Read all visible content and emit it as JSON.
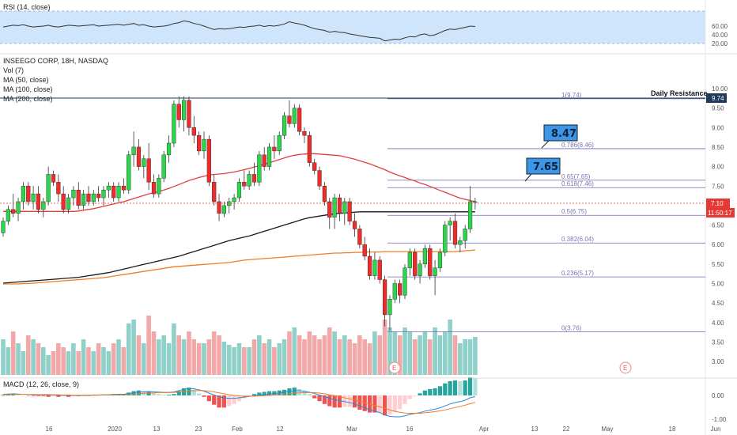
{
  "chart_data": {
    "type": "candlestick",
    "header": {
      "title": "INSEEGO CORP, 18H, NASDAQ",
      "indicators": [
        "Vol (7)",
        "MA (50, close)",
        "MA (100, close)",
        "MA (200, close)"
      ]
    },
    "rsi_label": "RSI (14, close)",
    "macd_label": "MACD (12, 26, close, 9)",
    "price_ticks": [
      "10.00",
      "9.50",
      "9.00",
      "8.50",
      "8.00",
      "7.50",
      "7.00",
      "6.50",
      "6.00",
      "5.50",
      "5.00",
      "4.50",
      "4.00",
      "3.50",
      "3.00"
    ],
    "rsi_ticks": [
      "60.00",
      "40.00",
      "20.00"
    ],
    "macd_ticks": [
      "0.00",
      "-1.00"
    ],
    "x_ticks": [
      "16",
      "2020",
      "13",
      "23",
      "Feb",
      "12",
      "Mar",
      "16",
      "Apr",
      "13",
      "22",
      "May",
      "18",
      "Jun"
    ],
    "price_badge": "7.10",
    "time_badge": "11:50:17",
    "resistance_badge": "9.74",
    "resistance_label": "Daily Resistance",
    "fib_levels": [
      {
        "text": "1(9.74)",
        "price": 9.74
      },
      {
        "text": "0.786(8.46)",
        "price": 8.46
      },
      {
        "text": "0.65(7.65)",
        "price": 7.65
      },
      {
        "text": "0.618(7.46)",
        "price": 7.46
      },
      {
        "text": "0.5(6.75)",
        "price": 6.75
      },
      {
        "text": "0.382(6.04)",
        "price": 6.04
      },
      {
        "text": "0.236(5.17)",
        "price": 5.17
      },
      {
        "text": "0(3.76)",
        "price": 3.76
      }
    ],
    "callouts": [
      "8.47",
      "7.65"
    ],
    "earnings_markers": [
      "E",
      "E"
    ],
    "candles": [
      [
        6.3,
        6.7,
        6.2,
        6.6
      ],
      [
        6.6,
        7.0,
        6.5,
        6.9
      ],
      [
        6.9,
        7.3,
        6.7,
        6.8
      ],
      [
        6.8,
        7.2,
        6.6,
        7.1
      ],
      [
        7.1,
        7.6,
        6.9,
        7.5
      ],
      [
        7.5,
        7.6,
        7.0,
        7.1
      ],
      [
        7.1,
        7.5,
        6.9,
        7.3
      ],
      [
        7.3,
        7.5,
        6.8,
        6.9
      ],
      [
        6.9,
        7.2,
        6.7,
        7.1
      ],
      [
        7.1,
        8.0,
        7.0,
        7.8
      ],
      [
        7.8,
        7.9,
        7.5,
        7.6
      ],
      [
        7.6,
        7.8,
        7.1,
        7.3
      ],
      [
        7.3,
        7.5,
        6.8,
        6.9
      ],
      [
        6.9,
        7.3,
        6.8,
        7.2
      ],
      [
        7.2,
        7.5,
        7.0,
        7.4
      ],
      [
        7.4,
        7.6,
        6.9,
        7.0
      ],
      [
        7.0,
        7.4,
        6.9,
        7.3
      ],
      [
        7.3,
        7.5,
        7.0,
        7.1
      ],
      [
        7.1,
        7.4,
        7.0,
        7.3
      ],
      [
        7.3,
        7.5,
        7.1,
        7.2
      ],
      [
        7.2,
        7.5,
        7.0,
        7.4
      ],
      [
        7.4,
        7.6,
        7.2,
        7.5
      ],
      [
        7.5,
        7.6,
        7.1,
        7.2
      ],
      [
        7.2,
        7.6,
        7.1,
        7.5
      ],
      [
        7.5,
        7.7,
        7.3,
        7.4
      ],
      [
        7.4,
        8.4,
        7.3,
        8.3
      ],
      [
        8.3,
        8.9,
        8.0,
        8.5
      ],
      [
        8.5,
        8.7,
        7.9,
        8.0
      ],
      [
        8.0,
        8.3,
        7.7,
        8.2
      ],
      [
        8.2,
        8.6,
        7.4,
        7.6
      ],
      [
        7.6,
        7.8,
        7.2,
        7.3
      ],
      [
        7.3,
        7.8,
        7.2,
        7.7
      ],
      [
        7.7,
        8.4,
        7.6,
        8.3
      ],
      [
        8.3,
        8.8,
        8.1,
        8.6
      ],
      [
        8.6,
        9.7,
        8.5,
        9.6
      ],
      [
        9.6,
        9.8,
        9.0,
        9.2
      ],
      [
        9.2,
        9.8,
        8.9,
        9.7
      ],
      [
        9.7,
        9.8,
        8.8,
        9.0
      ],
      [
        9.0,
        9.3,
        8.6,
        8.8
      ],
      [
        8.8,
        8.9,
        8.3,
        8.4
      ],
      [
        8.4,
        8.9,
        8.2,
        8.7
      ],
      [
        8.7,
        8.8,
        7.5,
        7.6
      ],
      [
        7.6,
        7.8,
        7.0,
        7.1
      ],
      [
        7.1,
        7.3,
        6.6,
        6.8
      ],
      [
        6.8,
        7.1,
        6.7,
        7.0
      ],
      [
        7.0,
        7.2,
        6.8,
        7.1
      ],
      [
        7.1,
        7.3,
        6.9,
        7.2
      ],
      [
        7.2,
        7.7,
        7.1,
        7.6
      ],
      [
        7.6,
        7.9,
        7.4,
        7.5
      ],
      [
        7.5,
        7.9,
        7.4,
        7.8
      ],
      [
        7.8,
        8.1,
        7.5,
        7.6
      ],
      [
        7.6,
        8.4,
        7.5,
        8.3
      ],
      [
        8.3,
        8.5,
        7.9,
        8.0
      ],
      [
        8.0,
        8.6,
        7.9,
        8.5
      ],
      [
        8.5,
        8.8,
        8.2,
        8.4
      ],
      [
        8.4,
        8.9,
        8.3,
        8.8
      ],
      [
        8.8,
        9.4,
        8.7,
        9.3
      ],
      [
        9.3,
        9.7,
        9.0,
        9.1
      ],
      [
        9.1,
        9.6,
        9.0,
        9.5
      ],
      [
        9.5,
        9.6,
        8.8,
        8.9
      ],
      [
        8.9,
        9.0,
        8.6,
        8.8
      ],
      [
        8.8,
        8.9,
        8.0,
        8.1
      ],
      [
        8.1,
        8.2,
        7.8,
        7.9
      ],
      [
        7.9,
        8.0,
        7.4,
        7.5
      ],
      [
        7.5,
        7.6,
        7.0,
        7.1
      ],
      [
        7.1,
        7.2,
        6.4,
        6.7
      ],
      [
        6.7,
        7.3,
        6.4,
        7.2
      ],
      [
        7.2,
        7.3,
        6.6,
        6.8
      ],
      [
        6.8,
        7.2,
        6.5,
        7.1
      ],
      [
        7.1,
        7.2,
        6.5,
        6.6
      ],
      [
        6.6,
        6.8,
        6.2,
        6.4
      ],
      [
        6.4,
        6.5,
        5.9,
        6.0
      ],
      [
        6.0,
        6.2,
        5.6,
        5.7
      ],
      [
        5.7,
        5.9,
        5.1,
        5.2
      ],
      [
        5.2,
        5.8,
        5.1,
        5.6
      ],
      [
        5.6,
        5.7,
        5.0,
        5.1
      ],
      [
        5.1,
        5.2,
        3.9,
        4.2
      ],
      [
        4.2,
        4.7,
        3.8,
        4.6
      ],
      [
        4.6,
        5.1,
        4.5,
        5.0
      ],
      [
        5.0,
        5.1,
        4.5,
        4.7
      ],
      [
        4.7,
        5.5,
        4.6,
        5.4
      ],
      [
        5.4,
        5.9,
        5.2,
        5.8
      ],
      [
        5.8,
        5.9,
        5.1,
        5.2
      ],
      [
        5.2,
        5.6,
        5.0,
        5.5
      ],
      [
        5.5,
        6.0,
        5.4,
        5.9
      ],
      [
        5.9,
        6.0,
        5.1,
        5.2
      ],
      [
        5.2,
        5.6,
        4.7,
        5.4
      ],
      [
        5.4,
        5.9,
        5.3,
        5.8
      ],
      [
        5.8,
        6.6,
        5.7,
        6.5
      ],
      [
        6.5,
        6.7,
        6.1,
        6.6
      ],
      [
        6.6,
        6.8,
        5.9,
        6.0
      ],
      [
        6.0,
        6.2,
        5.8,
        6.1
      ],
      [
        6.1,
        6.5,
        5.9,
        6.4
      ],
      [
        6.4,
        7.5,
        6.3,
        7.1
      ],
      [
        7.1,
        7.2,
        6.9,
        7.1
      ]
    ],
    "volumes": [
      0.45,
      0.35,
      0.55,
      0.4,
      0.3,
      0.5,
      0.45,
      0.4,
      0.35,
      0.25,
      0.3,
      0.4,
      0.35,
      0.3,
      0.4,
      0.3,
      0.45,
      0.35,
      0.3,
      0.4,
      0.35,
      0.3,
      0.4,
      0.45,
      0.35,
      0.65,
      0.7,
      0.5,
      0.4,
      0.75,
      0.55,
      0.45,
      0.5,
      0.4,
      0.65,
      0.5,
      0.45,
      0.55,
      0.45,
      0.4,
      0.4,
      0.45,
      0.55,
      0.5,
      0.42,
      0.38,
      0.35,
      0.4,
      0.35,
      0.35,
      0.45,
      0.5,
      0.4,
      0.45,
      0.35,
      0.4,
      0.45,
      0.55,
      0.6,
      0.5,
      0.45,
      0.55,
      0.5,
      0.45,
      0.5,
      0.6,
      0.55,
      0.45,
      0.5,
      0.45,
      0.4,
      0.5,
      0.45,
      0.4,
      0.55,
      0.5,
      0.7,
      0.6,
      0.55,
      0.5,
      0.6,
      0.55,
      0.45,
      0.5,
      0.55,
      0.45,
      0.6,
      0.5,
      0.55,
      0.7,
      0.5,
      0.4,
      0.45,
      0.45,
      0.48
    ],
    "ma50": [
      6.85,
      6.85,
      6.85,
      6.85,
      6.85,
      6.85,
      6.85,
      6.85,
      6.85,
      6.85,
      6.85,
      6.85,
      6.85,
      6.85,
      6.85,
      6.86,
      6.88,
      6.9,
      6.92,
      6.95,
      6.98,
      7.01,
      7.04,
      7.07,
      7.1,
      7.14,
      7.18,
      7.22,
      7.26,
      7.3,
      7.33,
      7.36,
      7.4,
      7.44,
      7.49,
      7.54,
      7.59,
      7.64,
      7.68,
      7.72,
      7.75,
      7.78,
      7.8,
      7.81,
      7.82,
      7.84,
      7.86,
      7.89,
      7.92,
      7.95,
      7.99,
      8.02,
      8.06,
      8.1,
      8.14,
      8.18,
      8.22,
      8.26,
      8.29,
      8.31,
      8.32,
      8.33,
      8.33,
      8.32,
      8.31,
      8.3,
      8.29,
      8.28,
      8.25,
      8.22,
      8.19,
      8.15,
      8.11,
      8.07,
      8.02,
      7.97,
      7.92,
      7.86,
      7.81,
      7.76,
      7.72,
      7.67,
      7.63,
      7.58,
      7.54,
      7.49,
      7.44,
      7.39,
      7.34,
      7.29,
      7.24,
      7.19,
      7.16,
      7.13,
      7.1
    ],
    "ma100": [
      5.01,
      5.02,
      5.03,
      5.04,
      5.05,
      5.06,
      5.07,
      5.08,
      5.09,
      5.1,
      5.11,
      5.12,
      5.13,
      5.14,
      5.15,
      5.16,
      5.18,
      5.2,
      5.22,
      5.24,
      5.26,
      5.28,
      5.31,
      5.34,
      5.37,
      5.4,
      5.43,
      5.46,
      5.49,
      5.52,
      5.55,
      5.58,
      5.61,
      5.64,
      5.67,
      5.7,
      5.74,
      5.78,
      5.82,
      5.86,
      5.9,
      5.94,
      5.98,
      6.02,
      6.06,
      6.1,
      6.13,
      6.16,
      6.19,
      6.22,
      6.26,
      6.3,
      6.34,
      6.38,
      6.42,
      6.46,
      6.5,
      6.54,
      6.58,
      6.62,
      6.66,
      6.69,
      6.71,
      6.73,
      6.75,
      6.77,
      6.79,
      6.8,
      6.81,
      6.82,
      6.83,
      6.84,
      6.84,
      6.84,
      6.84,
      6.84,
      6.84,
      6.84,
      6.84,
      6.84,
      6.84,
      6.84,
      6.84,
      6.84,
      6.84,
      6.84,
      6.84,
      6.84,
      6.84,
      6.84,
      6.84,
      6.84,
      6.84,
      6.84,
      6.84
    ],
    "ma200": [
      4.99,
      4.99,
      4.99,
      4.99,
      5.0,
      5.0,
      5.01,
      5.02,
      5.03,
      5.04,
      5.05,
      5.06,
      5.07,
      5.08,
      5.09,
      5.1,
      5.11,
      5.12,
      5.13,
      5.14,
      5.15,
      5.17,
      5.19,
      5.21,
      5.23,
      5.25,
      5.27,
      5.29,
      5.31,
      5.33,
      5.35,
      5.37,
      5.39,
      5.41,
      5.43,
      5.44,
      5.45,
      5.46,
      5.47,
      5.48,
      5.49,
      5.5,
      5.51,
      5.52,
      5.53,
      5.54,
      5.56,
      5.58,
      5.6,
      5.61,
      5.62,
      5.63,
      5.64,
      5.65,
      5.66,
      5.67,
      5.68,
      5.69,
      5.7,
      5.71,
      5.72,
      5.73,
      5.74,
      5.75,
      5.76,
      5.77,
      5.78,
      5.78,
      5.79,
      5.79,
      5.8,
      5.8,
      5.81,
      5.81,
      5.81,
      5.81,
      5.82,
      5.82,
      5.82,
      5.82,
      5.82,
      5.82,
      5.82,
      5.82,
      5.82,
      5.82,
      5.82,
      5.82,
      5.82,
      5.82,
      5.82,
      5.83,
      5.84,
      5.85,
      5.86
    ],
    "rsi": [
      58,
      60,
      62,
      61,
      63,
      60,
      58,
      59,
      60,
      62,
      59,
      58,
      60,
      62,
      61,
      60,
      61,
      62,
      63,
      60,
      61,
      62,
      63,
      64,
      62,
      64,
      66,
      62,
      63,
      60,
      58,
      59,
      60,
      62,
      66,
      68,
      72,
      70,
      66,
      64,
      60,
      56,
      52,
      54,
      53,
      54,
      56,
      58,
      57,
      59,
      60,
      62,
      59,
      61,
      60,
      62,
      65,
      70,
      67,
      65,
      62,
      58,
      54,
      52,
      50,
      46,
      48,
      46,
      45,
      42,
      40,
      38,
      36,
      34,
      33,
      32,
      26,
      28,
      30,
      29,
      33,
      36,
      35,
      40,
      42,
      38,
      40,
      45,
      50,
      53,
      52,
      55,
      57,
      60,
      59
    ],
    "macd": [
      0.05,
      0.06,
      0.07,
      0.06,
      0.05,
      0.05,
      0.04,
      0.03,
      0.03,
      0.02,
      0.02,
      0.01,
      0.01,
      0.0,
      0.0,
      0.0,
      0.01,
      0.01,
      0.02,
      0.02,
      0.03,
      0.03,
      0.04,
      0.05,
      0.05,
      0.08,
      0.12,
      0.14,
      0.15,
      0.16,
      0.15,
      0.14,
      0.13,
      0.13,
      0.15,
      0.2,
      0.26,
      0.3,
      0.28,
      0.24,
      0.18,
      0.1,
      0.02,
      -0.06,
      -0.1,
      -0.12,
      -0.12,
      -0.1,
      -0.07,
      -0.04,
      -0.01,
      0.02,
      0.04,
      0.06,
      0.08,
      0.1,
      0.13,
      0.17,
      0.2,
      0.2,
      0.18,
      0.14,
      0.08,
      0.02,
      -0.05,
      -0.12,
      -0.18,
      -0.22,
      -0.26,
      -0.3,
      -0.36,
      -0.44,
      -0.52,
      -0.6,
      -0.66,
      -0.72,
      -0.82,
      -0.88,
      -0.9,
      -0.9,
      -0.86,
      -0.8,
      -0.76,
      -0.72,
      -0.66,
      -0.62,
      -0.58,
      -0.52,
      -0.44,
      -0.36,
      -0.3,
      -0.26,
      -0.2,
      -0.1,
      -0.05
    ],
    "macd_signal": [
      0.04,
      0.04,
      0.05,
      0.05,
      0.05,
      0.05,
      0.05,
      0.04,
      0.04,
      0.04,
      0.03,
      0.03,
      0.02,
      0.02,
      0.01,
      0.01,
      0.01,
      0.01,
      0.01,
      0.01,
      0.02,
      0.02,
      0.02,
      0.03,
      0.03,
      0.04,
      0.06,
      0.07,
      0.09,
      0.1,
      0.11,
      0.12,
      0.12,
      0.12,
      0.13,
      0.14,
      0.16,
      0.19,
      0.2,
      0.21,
      0.2,
      0.18,
      0.15,
      0.11,
      0.07,
      0.03,
      0.0,
      -0.02,
      -0.03,
      -0.03,
      -0.03,
      -0.02,
      -0.01,
      0.0,
      0.02,
      0.03,
      0.05,
      0.07,
      0.09,
      0.11,
      0.12,
      0.12,
      0.12,
      0.1,
      0.07,
      0.03,
      -0.01,
      -0.05,
      -0.1,
      -0.14,
      -0.19,
      -0.24,
      -0.3,
      -0.36,
      -0.42,
      -0.48,
      -0.54,
      -0.61,
      -0.67,
      -0.71,
      -0.74,
      -0.75,
      -0.75,
      -0.75,
      -0.73,
      -0.71,
      -0.68,
      -0.65,
      -0.61,
      -0.56,
      -0.51,
      -0.46,
      -0.41,
      -0.35,
      -0.29
    ]
  }
}
